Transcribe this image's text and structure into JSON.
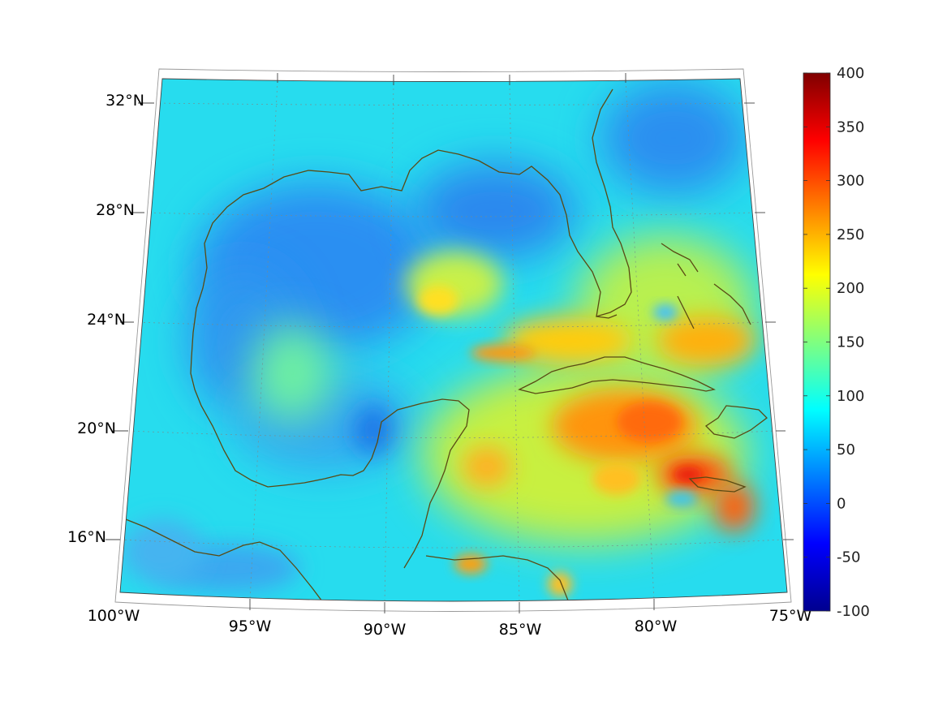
{
  "map": {
    "projection": "conic",
    "lon_range": [
      -100,
      -75
    ],
    "lat_range": [
      14,
      33
    ],
    "lon_ticks": [
      {
        "value": -100,
        "label": "100°W"
      },
      {
        "value": -95,
        "label": "95°W"
      },
      {
        "value": -90,
        "label": "90°W"
      },
      {
        "value": -85,
        "label": "85°W"
      },
      {
        "value": -80,
        "label": "80°W"
      },
      {
        "value": -75,
        "label": "75°W"
      }
    ],
    "lat_ticks": [
      {
        "value": 32,
        "label": "32°N"
      },
      {
        "value": 28,
        "label": "28°N"
      },
      {
        "value": 24,
        "label": "24°N"
      },
      {
        "value": 20,
        "label": "20°N"
      },
      {
        "value": 16,
        "label": "16°N"
      }
    ],
    "grid": true,
    "coastline_color": "#5a4a14",
    "field_description_colors": {
      "gulf_low": "#1f8cf0",
      "background": "#21d7ee",
      "caribbean_high": "#ff8a10",
      "peak": "#e82010"
    }
  },
  "colorbar": {
    "min": -100,
    "max": 400,
    "ticks": [
      {
        "value": 400,
        "label": "400"
      },
      {
        "value": 350,
        "label": "350"
      },
      {
        "value": 300,
        "label": "300"
      },
      {
        "value": 250,
        "label": "250"
      },
      {
        "value": 200,
        "label": "200"
      },
      {
        "value": 150,
        "label": "150"
      },
      {
        "value": 100,
        "label": "100"
      },
      {
        "value": 50,
        "label": "50"
      },
      {
        "value": 0,
        "label": "0"
      },
      {
        "value": -50,
        "label": "-50"
      },
      {
        "value": -100,
        "label": "-100"
      }
    ],
    "colormap": "jet"
  }
}
